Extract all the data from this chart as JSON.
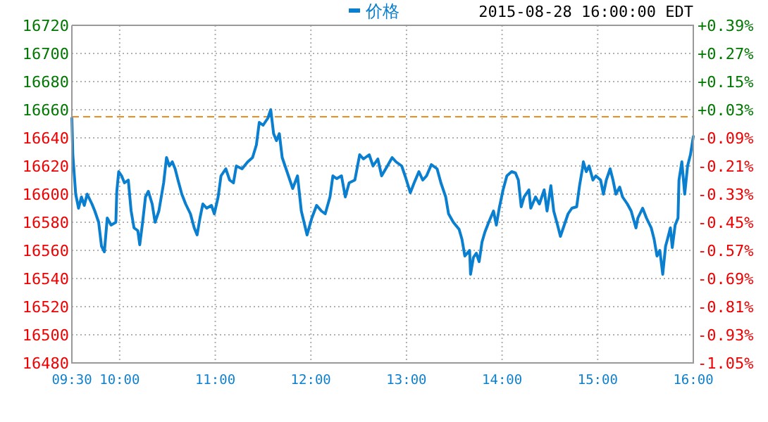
{
  "chart_data": {
    "type": "line",
    "subtitle": "2015-08-28 16:00:00 EDT",
    "x": [
      9.5,
      9.51,
      9.54,
      9.57,
      9.6,
      9.63,
      9.66,
      9.71,
      9.74,
      9.78,
      9.81,
      9.84,
      9.87,
      9.91,
      9.96,
      9.97,
      9.99,
      10.02,
      10.05,
      10.09,
      10.12,
      10.15,
      10.19,
      10.21,
      10.24,
      10.27,
      10.3,
      10.34,
      10.37,
      10.41,
      10.46,
      10.49,
      10.52,
      10.55,
      10.58,
      10.61,
      10.65,
      10.69,
      10.74,
      10.78,
      10.81,
      10.84,
      10.87,
      10.91,
      10.96,
      10.99,
      11.03,
      11.06,
      11.11,
      11.15,
      11.19,
      11.22,
      11.28,
      11.34,
      11.39,
      11.43,
      11.46,
      11.5,
      11.55,
      11.58,
      11.61,
      11.64,
      11.67,
      11.7,
      11.74,
      11.78,
      11.81,
      11.86,
      11.9,
      11.96,
      12.01,
      12.06,
      12.11,
      12.15,
      12.2,
      12.23,
      12.27,
      12.32,
      12.36,
      12.4,
      12.46,
      12.51,
      12.55,
      12.61,
      12.65,
      12.7,
      12.74,
      12.8,
      12.85,
      12.89,
      12.95,
      12.99,
      13.04,
      13.08,
      13.13,
      13.17,
      13.21,
      13.26,
      13.32,
      13.36,
      13.41,
      13.44,
      13.49,
      13.55,
      13.58,
      13.61,
      13.66,
      13.67,
      13.7,
      13.73,
      13.76,
      13.79,
      13.82,
      13.86,
      13.91,
      13.94,
      13.97,
      14.01,
      14.05,
      14.1,
      14.14,
      14.17,
      14.2,
      14.23,
      14.28,
      14.3,
      14.35,
      14.39,
      14.44,
      14.47,
      14.51,
      14.54,
      14.58,
      14.61,
      14.66,
      14.69,
      14.73,
      14.78,
      14.81,
      14.84,
      14.85,
      14.88,
      14.91,
      14.95,
      14.98,
      15.03,
      15.06,
      15.09,
      15.13,
      15.16,
      15.19,
      15.23,
      15.26,
      15.31,
      15.35,
      15.4,
      15.42,
      15.47,
      15.51,
      15.56,
      15.59,
      15.62,
      15.65,
      15.68,
      15.71,
      15.73,
      15.76,
      15.78,
      15.81,
      15.84,
      15.85,
      15.88,
      15.91,
      15.94,
      15.97,
      16.0
    ],
    "series": [
      {
        "name": "价格",
        "color": "#0a7fcf",
        "values": [
          16654,
          16628,
          16600,
          16590,
          16598,
          16592,
          16600,
          16593,
          16588,
          16580,
          16563,
          16559,
          16583,
          16578,
          16580,
          16602,
          16616,
          16613,
          16608,
          16610,
          16588,
          16576,
          16574,
          16564,
          16580,
          16598,
          16602,
          16593,
          16580,
          16588,
          16608,
          16626,
          16620,
          16623,
          16618,
          16610,
          16600,
          16593,
          16586,
          16576,
          16571,
          16583,
          16593,
          16590,
          16592,
          16586,
          16598,
          16613,
          16618,
          16610,
          16608,
          16620,
          16618,
          16623,
          16626,
          16635,
          16651,
          16649,
          16654,
          16660,
          16643,
          16638,
          16643,
          16626,
          16618,
          16610,
          16604,
          16613,
          16588,
          16571,
          16583,
          16592,
          16588,
          16586,
          16598,
          16613,
          16611,
          16613,
          16598,
          16608,
          16610,
          16628,
          16625,
          16628,
          16620,
          16625,
          16613,
          16620,
          16626,
          16623,
          16620,
          16612,
          16601,
          16608,
          16616,
          16610,
          16613,
          16621,
          16618,
          16608,
          16598,
          16586,
          16580,
          16575,
          16568,
          16556,
          16560,
          16543,
          16555,
          16558,
          16552,
          16566,
          16573,
          16580,
          16588,
          16578,
          16590,
          16603,
          16613,
          16616,
          16615,
          16610,
          16591,
          16598,
          16603,
          16590,
          16598,
          16593,
          16603,
          16588,
          16606,
          16588,
          16578,
          16570,
          16580,
          16586,
          16590,
          16591,
          16606,
          16618,
          16623,
          16616,
          16620,
          16610,
          16613,
          16610,
          16600,
          16610,
          16618,
          16610,
          16600,
          16605,
          16598,
          16593,
          16588,
          16576,
          16583,
          16590,
          16583,
          16576,
          16568,
          16556,
          16560,
          16543,
          16563,
          16568,
          16576,
          16562,
          16578,
          16583,
          16610,
          16623,
          16600,
          16620,
          16628,
          16641
        ]
      }
    ],
    "xlim": [
      9.5,
      16
    ],
    "xticks": [
      {
        "value": 9.5,
        "label": "09:30"
      },
      {
        "value": 10,
        "label": "10:00"
      },
      {
        "value": 11,
        "label": "11:00"
      },
      {
        "value": 12,
        "label": "12:00"
      },
      {
        "value": 13,
        "label": "13:00"
      },
      {
        "value": 14,
        "label": "14:00"
      },
      {
        "value": 15,
        "label": "15:00"
      },
      {
        "value": 16,
        "label": "16:00"
      }
    ],
    "ylim": [
      16480,
      16720
    ],
    "yticks": [
      16480,
      16500,
      16520,
      16540,
      16560,
      16580,
      16600,
      16620,
      16640,
      16660,
      16680,
      16700,
      16720
    ],
    "y2lim": [
      -1.05,
      0.39
    ],
    "y2ticks": [
      {
        "value": -1.05,
        "label": "-1.05%"
      },
      {
        "value": -0.93,
        "label": "-0.93%"
      },
      {
        "value": -0.81,
        "label": "-0.81%"
      },
      {
        "value": -0.69,
        "label": "-0.69%"
      },
      {
        "value": -0.57,
        "label": "-0.57%"
      },
      {
        "value": -0.45,
        "label": "-0.45%"
      },
      {
        "value": -0.33,
        "label": "-0.33%"
      },
      {
        "value": -0.21,
        "label": "-0.21%"
      },
      {
        "value": -0.09,
        "label": "-0.09%"
      },
      {
        "value": 0.03,
        "label": "+0.03%"
      },
      {
        "value": 0.15,
        "label": "+0.15%"
      },
      {
        "value": 0.27,
        "label": "+0.27%"
      },
      {
        "value": 0.39,
        "label": "+0.39%"
      }
    ],
    "ref_lines": [
      {
        "axis": "y",
        "value": 16655,
        "color": "#f08c1e",
        "line_style": "dashed"
      }
    ],
    "grid": true,
    "legend": "top"
  }
}
